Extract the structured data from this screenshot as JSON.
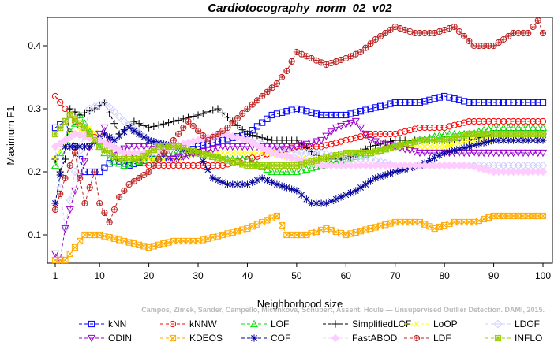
{
  "chart_data": {
    "type": "line",
    "title": "Cardiotocography_norm_02_v02",
    "xlabel": "Neighborhood size",
    "ylabel": "Maximum F1",
    "xlim": [
      1,
      100
    ],
    "ylim": [
      0.055,
      0.445
    ],
    "x_ticks": [
      1,
      10,
      20,
      30,
      40,
      50,
      60,
      70,
      80,
      90,
      100
    ],
    "y_ticks": [
      0.1,
      0.2,
      0.3,
      0.4
    ],
    "grid": false,
    "legend_position": "bottom",
    "watermark": "Campos, Zimek, Sander, Campello, Micenkova, Schubert, Assent, Houle — Unsupervised Outlier Detection. DAMI, 2015.",
    "series": [
      {
        "name": "kNN",
        "color": "#0000ff",
        "marker": "square",
        "points": [
          [
            1,
            0.27
          ],
          [
            3,
            0.28
          ],
          [
            5,
            0.24
          ],
          [
            7,
            0.2
          ],
          [
            10,
            0.2
          ],
          [
            13,
            0.22
          ],
          [
            16,
            0.21
          ],
          [
            20,
            0.22
          ],
          [
            25,
            0.22
          ],
          [
            30,
            0.24
          ],
          [
            35,
            0.25
          ],
          [
            40,
            0.26
          ],
          [
            45,
            0.29
          ],
          [
            50,
            0.3
          ],
          [
            55,
            0.29
          ],
          [
            60,
            0.29
          ],
          [
            65,
            0.3
          ],
          [
            70,
            0.31
          ],
          [
            75,
            0.31
          ],
          [
            80,
            0.32
          ],
          [
            85,
            0.31
          ],
          [
            90,
            0.31
          ],
          [
            95,
            0.31
          ],
          [
            100,
            0.31
          ]
        ]
      },
      {
        "name": "kNNW",
        "color": "#ff0000",
        "marker": "circle",
        "points": [
          [
            1,
            0.32
          ],
          [
            3,
            0.3
          ],
          [
            5,
            0.28
          ],
          [
            8,
            0.26
          ],
          [
            10,
            0.25
          ],
          [
            15,
            0.23
          ],
          [
            20,
            0.21
          ],
          [
            25,
            0.21
          ],
          [
            30,
            0.21
          ],
          [
            35,
            0.21
          ],
          [
            40,
            0.22
          ],
          [
            45,
            0.23
          ],
          [
            50,
            0.24
          ],
          [
            55,
            0.24
          ],
          [
            60,
            0.25
          ],
          [
            65,
            0.26
          ],
          [
            70,
            0.26
          ],
          [
            75,
            0.27
          ],
          [
            80,
            0.27
          ],
          [
            85,
            0.28
          ],
          [
            90,
            0.28
          ],
          [
            95,
            0.28
          ],
          [
            100,
            0.28
          ]
        ]
      },
      {
        "name": "LOF",
        "color": "#00dd00",
        "marker": "triangle-up",
        "points": [
          [
            1,
            0.21
          ],
          [
            3,
            0.25
          ],
          [
            6,
            0.29
          ],
          [
            9,
            0.25
          ],
          [
            12,
            0.22
          ],
          [
            15,
            0.21
          ],
          [
            20,
            0.22
          ],
          [
            25,
            0.23
          ],
          [
            30,
            0.23
          ],
          [
            35,
            0.22
          ],
          [
            40,
            0.22
          ],
          [
            45,
            0.2
          ],
          [
            50,
            0.2
          ],
          [
            55,
            0.21
          ],
          [
            60,
            0.22
          ],
          [
            65,
            0.23
          ],
          [
            70,
            0.24
          ],
          [
            75,
            0.25
          ],
          [
            80,
            0.26
          ],
          [
            85,
            0.26
          ],
          [
            90,
            0.27
          ],
          [
            95,
            0.27
          ],
          [
            100,
            0.27
          ]
        ]
      },
      {
        "name": "SimplifiedLOF",
        "color": "#000000",
        "marker": "plus",
        "points": [
          [
            1,
            0.22
          ],
          [
            2,
            0.2
          ],
          [
            3,
            0.22
          ],
          [
            4,
            0.3
          ],
          [
            6,
            0.29
          ],
          [
            9,
            0.3
          ],
          [
            11,
            0.31
          ],
          [
            14,
            0.26
          ],
          [
            17,
            0.28
          ],
          [
            20,
            0.27
          ],
          [
            25,
            0.28
          ],
          [
            30,
            0.29
          ],
          [
            34,
            0.3
          ],
          [
            37,
            0.28
          ],
          [
            40,
            0.26
          ],
          [
            45,
            0.25
          ],
          [
            50,
            0.25
          ],
          [
            55,
            0.22
          ],
          [
            60,
            0.22
          ],
          [
            65,
            0.24
          ],
          [
            70,
            0.25
          ],
          [
            75,
            0.25
          ],
          [
            80,
            0.25
          ],
          [
            85,
            0.25
          ],
          [
            90,
            0.26
          ],
          [
            95,
            0.26
          ],
          [
            100,
            0.26
          ]
        ]
      },
      {
        "name": "LoOP",
        "color": "#ffff00",
        "marker": "cross",
        "points": [
          [
            1,
            0.22
          ],
          [
            4,
            0.26
          ],
          [
            8,
            0.27
          ],
          [
            12,
            0.24
          ],
          [
            16,
            0.22
          ],
          [
            20,
            0.22
          ],
          [
            25,
            0.22
          ],
          [
            30,
            0.23
          ],
          [
            35,
            0.23
          ],
          [
            40,
            0.23
          ],
          [
            45,
            0.23
          ],
          [
            50,
            0.22
          ],
          [
            55,
            0.22
          ],
          [
            60,
            0.23
          ],
          [
            65,
            0.23
          ],
          [
            70,
            0.24
          ],
          [
            75,
            0.24
          ],
          [
            80,
            0.24
          ],
          [
            85,
            0.25
          ],
          [
            90,
            0.25
          ],
          [
            95,
            0.25
          ],
          [
            100,
            0.25
          ]
        ]
      },
      {
        "name": "LDOF",
        "color": "#ccccff",
        "marker": "diamond",
        "points": [
          [
            1,
            0.24
          ],
          [
            3,
            0.11
          ],
          [
            5,
            0.2
          ],
          [
            8,
            0.3
          ],
          [
            11,
            0.31
          ],
          [
            15,
            0.28
          ],
          [
            20,
            0.25
          ],
          [
            25,
            0.24
          ],
          [
            30,
            0.25
          ],
          [
            35,
            0.26
          ],
          [
            40,
            0.25
          ],
          [
            45,
            0.24
          ],
          [
            50,
            0.23
          ],
          [
            55,
            0.23
          ],
          [
            60,
            0.22
          ],
          [
            65,
            0.22
          ],
          [
            70,
            0.21
          ],
          [
            75,
            0.21
          ],
          [
            80,
            0.21
          ],
          [
            85,
            0.21
          ],
          [
            90,
            0.21
          ],
          [
            95,
            0.21
          ],
          [
            100,
            0.21
          ]
        ]
      },
      {
        "name": "ODIN",
        "color": "#9900cc",
        "marker": "triangle-down",
        "points": [
          [
            1,
            0.07
          ],
          [
            2,
            0.06
          ],
          [
            3,
            0.11
          ],
          [
            5,
            0.17
          ],
          [
            8,
            0.24
          ],
          [
            11,
            0.27
          ],
          [
            13,
            0.23
          ],
          [
            16,
            0.24
          ],
          [
            20,
            0.24
          ],
          [
            25,
            0.22
          ],
          [
            30,
            0.23
          ],
          [
            35,
            0.24
          ],
          [
            40,
            0.24
          ],
          [
            45,
            0.24
          ],
          [
            50,
            0.24
          ],
          [
            55,
            0.25
          ],
          [
            58,
            0.27
          ],
          [
            62,
            0.28
          ],
          [
            65,
            0.25
          ],
          [
            70,
            0.24
          ],
          [
            75,
            0.23
          ],
          [
            80,
            0.23
          ],
          [
            85,
            0.23
          ],
          [
            90,
            0.23
          ],
          [
            95,
            0.23
          ],
          [
            100,
            0.23
          ]
        ]
      },
      {
        "name": "KDEOS",
        "color": "#ffaa00",
        "marker": "square-x",
        "points": [
          [
            1,
            0.06
          ],
          [
            3,
            0.06
          ],
          [
            5,
            0.08
          ],
          [
            7,
            0.1
          ],
          [
            10,
            0.1
          ],
          [
            15,
            0.09
          ],
          [
            20,
            0.08
          ],
          [
            25,
            0.09
          ],
          [
            30,
            0.09
          ],
          [
            35,
            0.1
          ],
          [
            40,
            0.11
          ],
          [
            43,
            0.12
          ],
          [
            46,
            0.13
          ],
          [
            48,
            0.1
          ],
          [
            52,
            0.1
          ],
          [
            56,
            0.11
          ],
          [
            60,
            0.1
          ],
          [
            65,
            0.11
          ],
          [
            70,
            0.12
          ],
          [
            75,
            0.12
          ],
          [
            78,
            0.11
          ],
          [
            82,
            0.12
          ],
          [
            86,
            0.12
          ],
          [
            90,
            0.13
          ],
          [
            95,
            0.13
          ],
          [
            100,
            0.13
          ]
        ]
      },
      {
        "name": "COF",
        "color": "#000099",
        "marker": "asterisk",
        "points": [
          [
            1,
            0.15
          ],
          [
            3,
            0.24
          ],
          [
            5,
            0.24
          ],
          [
            8,
            0.24
          ],
          [
            11,
            0.26
          ],
          [
            13,
            0.25
          ],
          [
            16,
            0.27
          ],
          [
            20,
            0.25
          ],
          [
            25,
            0.24
          ],
          [
            30,
            0.23
          ],
          [
            33,
            0.19
          ],
          [
            36,
            0.18
          ],
          [
            40,
            0.18
          ],
          [
            43,
            0.19
          ],
          [
            46,
            0.18
          ],
          [
            50,
            0.17
          ],
          [
            53,
            0.15
          ],
          [
            56,
            0.15
          ],
          [
            59,
            0.16
          ],
          [
            62,
            0.17
          ],
          [
            66,
            0.19
          ],
          [
            70,
            0.2
          ],
          [
            75,
            0.21
          ],
          [
            80,
            0.23
          ],
          [
            85,
            0.24
          ],
          [
            90,
            0.25
          ],
          [
            95,
            0.25
          ],
          [
            100,
            0.25
          ]
        ]
      },
      {
        "name": "FastABOD",
        "color": "#ffccff",
        "marker": "diamond-filled",
        "points": [
          [
            1,
            0.24
          ],
          [
            5,
            0.26
          ],
          [
            10,
            0.25
          ],
          [
            15,
            0.23
          ],
          [
            20,
            0.23
          ],
          [
            25,
            0.24
          ],
          [
            30,
            0.25
          ],
          [
            35,
            0.26
          ],
          [
            40,
            0.25
          ],
          [
            45,
            0.23
          ],
          [
            50,
            0.22
          ],
          [
            55,
            0.21
          ],
          [
            60,
            0.21
          ],
          [
            65,
            0.21
          ],
          [
            70,
            0.21
          ],
          [
            75,
            0.21
          ],
          [
            80,
            0.21
          ],
          [
            85,
            0.21
          ],
          [
            90,
            0.2
          ],
          [
            95,
            0.2
          ],
          [
            100,
            0.2
          ]
        ]
      },
      {
        "name": "LDF",
        "color": "#bb2222",
        "marker": "circle-plus",
        "points": [
          [
            1,
            0.14
          ],
          [
            3,
            0.19
          ],
          [
            5,
            0.23
          ],
          [
            7,
            0.15
          ],
          [
            9,
            0.2
          ],
          [
            10,
            0.15
          ],
          [
            12,
            0.12
          ],
          [
            14,
            0.16
          ],
          [
            16,
            0.18
          ],
          [
            20,
            0.2
          ],
          [
            25,
            0.25
          ],
          [
            28,
            0.28
          ],
          [
            32,
            0.25
          ],
          [
            36,
            0.27
          ],
          [
            40,
            0.3
          ],
          [
            43,
            0.32
          ],
          [
            46,
            0.34
          ],
          [
            48,
            0.36
          ],
          [
            50,
            0.39
          ],
          [
            53,
            0.38
          ],
          [
            56,
            0.37
          ],
          [
            60,
            0.38
          ],
          [
            63,
            0.39
          ],
          [
            66,
            0.41
          ],
          [
            70,
            0.43
          ],
          [
            74,
            0.42
          ],
          [
            78,
            0.42
          ],
          [
            82,
            0.43
          ],
          [
            86,
            0.4
          ],
          [
            90,
            0.4
          ],
          [
            94,
            0.42
          ],
          [
            97,
            0.42
          ],
          [
            99,
            0.44
          ],
          [
            100,
            0.42
          ]
        ]
      },
      {
        "name": "INFLO",
        "color": "#99cc00",
        "marker": "square-star",
        "points": [
          [
            1,
            0.26
          ],
          [
            4,
            0.29
          ],
          [
            7,
            0.27
          ],
          [
            10,
            0.24
          ],
          [
            14,
            0.22
          ],
          [
            18,
            0.22
          ],
          [
            22,
            0.24
          ],
          [
            26,
            0.24
          ],
          [
            30,
            0.23
          ],
          [
            35,
            0.22
          ],
          [
            40,
            0.21
          ],
          [
            45,
            0.21
          ],
          [
            50,
            0.21
          ],
          [
            55,
            0.22
          ],
          [
            60,
            0.23
          ],
          [
            65,
            0.23
          ],
          [
            70,
            0.24
          ],
          [
            75,
            0.25
          ],
          [
            80,
            0.25
          ],
          [
            85,
            0.26
          ],
          [
            90,
            0.26
          ],
          [
            95,
            0.26
          ],
          [
            100,
            0.26
          ]
        ]
      }
    ]
  }
}
